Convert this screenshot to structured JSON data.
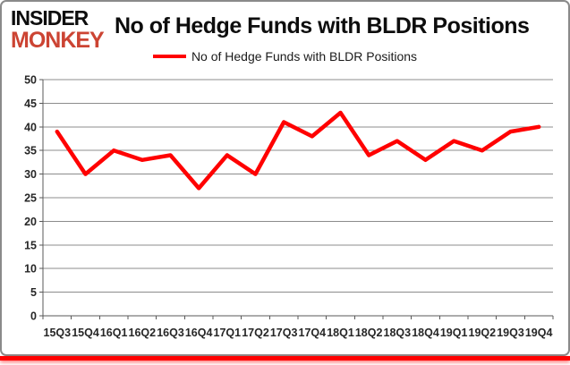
{
  "branding": {
    "logo_line1": "INSIDER",
    "logo_line2": "MONKEY",
    "logo_color_top": "#0d0d0d",
    "logo_color_bottom": "#cc4433"
  },
  "header": {
    "title": "No of Hedge Funds with BLDR Positions"
  },
  "legend": {
    "label": "No of Hedge Funds with BLDR Positions",
    "line_color": "#ff0000"
  },
  "chart_data": {
    "type": "line",
    "title": "No of Hedge Funds with BLDR Positions",
    "categories": [
      "15Q3",
      "15Q4",
      "16Q1",
      "16Q2",
      "16Q3",
      "16Q4",
      "17Q1",
      "17Q2",
      "17Q3",
      "17Q4",
      "18Q1",
      "18Q2",
      "18Q3",
      "18Q4",
      "19Q1",
      "19Q2",
      "19Q3",
      "19Q4"
    ],
    "series": [
      {
        "name": "No of Hedge Funds with BLDR Positions",
        "color": "#ff0000",
        "values": [
          39,
          30,
          35,
          33,
          34,
          27,
          34,
          30,
          41,
          38,
          43,
          34,
          37,
          33,
          37,
          35,
          39,
          40
        ]
      }
    ],
    "xlabel": "",
    "ylabel": "",
    "ylim": [
      0,
      50
    ],
    "ytick_step": 5,
    "grid": "horizontal",
    "legend_position": "top-center"
  },
  "colors": {
    "gridline": "#8c8c8c",
    "axis": "#595959",
    "tick_label": "#262626",
    "footer_bar": "#ff0000",
    "frame_border": "#8a8a8a"
  }
}
